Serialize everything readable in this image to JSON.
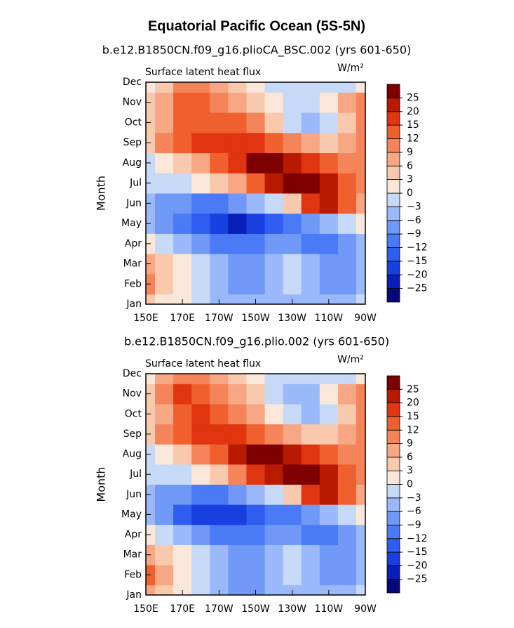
{
  "chart_data": [
    {
      "type": "contour",
      "title": "Equatorial Pacific Ocean (5S-5N)",
      "subtitle": "b.e12.B1850CN.f09_g16.plioCA_BSC.002 (yrs 601-650)",
      "left_label": "Surface latent heat flux",
      "units": "W/m²",
      "ylabel": "Month",
      "categories": [
        "Jan",
        "Feb",
        "Mar",
        "Apr",
        "May",
        "Jun",
        "Jul",
        "Aug",
        "Sep",
        "Oct",
        "Nov",
        "Dec"
      ],
      "x": [
        150,
        160,
        170,
        180,
        190,
        200,
        210,
        220,
        230,
        240,
        250,
        260,
        270
      ],
      "xlim": [
        150,
        270
      ],
      "xticks": [
        {
          "value": 150,
          "label": "150E"
        },
        {
          "value": 170,
          "label": "170E"
        },
        {
          "value": 190,
          "label": "170W"
        },
        {
          "value": 210,
          "label": "150W"
        },
        {
          "value": 230,
          "label": "130W"
        },
        {
          "value": 250,
          "label": "110W"
        },
        {
          "value": 270,
          "label": "90W"
        }
      ],
      "values": [
        [
          4,
          2,
          0,
          -3,
          -6,
          -6,
          -6,
          -6,
          -6,
          -6,
          -6,
          -4,
          -3
        ],
        [
          9,
          3,
          0,
          -3,
          -6,
          -9,
          -9,
          -6,
          -3,
          -6,
          -9,
          -9,
          -6
        ],
        [
          6,
          3,
          0,
          -3,
          -6,
          -9,
          -9,
          -6,
          -3,
          -6,
          -9,
          -9,
          -6
        ],
        [
          0,
          -3,
          -6,
          -9,
          -12,
          -12,
          -12,
          -9,
          -9,
          -12,
          -12,
          -9,
          -6
        ],
        [
          -6,
          -9,
          -12,
          -15,
          -20,
          -22,
          -20,
          -15,
          -12,
          -9,
          -6,
          -3,
          0
        ],
        [
          -6,
          -9,
          -9,
          -12,
          -12,
          -9,
          -6,
          -3,
          3,
          15,
          20,
          12,
          6
        ],
        [
          -3,
          -3,
          -3,
          0,
          3,
          6,
          12,
          20,
          27,
          27,
          20,
          12,
          9
        ],
        [
          -3,
          0,
          3,
          6,
          12,
          18,
          27,
          27,
          20,
          15,
          12,
          9,
          9
        ],
        [
          3,
          9,
          12,
          15,
          18,
          18,
          15,
          12,
          9,
          6,
          3,
          6,
          9
        ],
        [
          3,
          6,
          12,
          13,
          13,
          12,
          9,
          3,
          -3,
          -6,
          -3,
          3,
          9
        ],
        [
          3,
          6,
          13,
          13,
          9,
          6,
          3,
          0,
          -3,
          -3,
          0,
          6,
          9
        ],
        [
          0,
          3,
          9,
          9,
          6,
          3,
          0,
          -3,
          -3,
          -3,
          -3,
          -3,
          0
        ]
      ],
      "levels": [
        {
          "value": -25,
          "label": "−25"
        },
        {
          "value": -20,
          "label": "−20"
        },
        {
          "value": -15,
          "label": "−15"
        },
        {
          "value": -12,
          "label": "−12"
        },
        {
          "value": -9,
          "label": "−9"
        },
        {
          "value": -6,
          "label": "−6"
        },
        {
          "value": -3,
          "label": "−3"
        },
        0,
        3,
        6,
        9,
        12,
        15,
        20,
        25
      ],
      "colors": [
        "#08087a",
        "#0a1fb8",
        "#1a3fe0",
        "#2f5df0",
        "#4a7af5",
        "#6f98f7",
        "#9ab8fa",
        "#c6daf8",
        "#fbe7d9",
        "#f9c9ad",
        "#f8a784",
        "#f5845a",
        "#f0602e",
        "#e03510",
        "#b81a00",
        "#7f0000"
      ]
    },
    {
      "type": "contour",
      "subtitle": "b.e12.B1850CN.f09_g16.plio.002 (yrs 601-650)",
      "left_label": "Surface latent heat flux",
      "units": "W/m²",
      "ylabel": "Month",
      "categories": [
        "Jan",
        "Feb",
        "Mar",
        "Apr",
        "May",
        "Jun",
        "Jul",
        "Aug",
        "Sep",
        "Oct",
        "Nov",
        "Dec"
      ],
      "x": [
        150,
        160,
        170,
        180,
        190,
        200,
        210,
        220,
        230,
        240,
        250,
        260,
        270
      ],
      "xlim": [
        150,
        270
      ],
      "xticks": [
        {
          "value": 150,
          "label": "150E"
        },
        {
          "value": 170,
          "label": "170E"
        },
        {
          "value": 190,
          "label": "170W"
        },
        {
          "value": 210,
          "label": "150W"
        },
        {
          "value": 230,
          "label": "130W"
        },
        {
          "value": 250,
          "label": "110W"
        },
        {
          "value": 270,
          "label": "90W"
        }
      ],
      "values": [
        [
          6,
          3,
          0,
          -3,
          -6,
          -9,
          -9,
          -6,
          -6,
          -6,
          -6,
          -6,
          -3
        ],
        [
          12,
          6,
          0,
          -3,
          -6,
          -9,
          -9,
          -6,
          -3,
          -6,
          -9,
          -9,
          -6
        ],
        [
          6,
          3,
          0,
          -3,
          -6,
          -9,
          -9,
          -6,
          -3,
          -6,
          -9,
          -9,
          -6
        ],
        [
          0,
          -3,
          -6,
          -9,
          -12,
          -12,
          -12,
          -9,
          -9,
          -12,
          -12,
          -9,
          -6
        ],
        [
          -6,
          -9,
          -15,
          -18,
          -20,
          -18,
          -15,
          -12,
          -12,
          -9,
          -6,
          -3,
          0
        ],
        [
          -6,
          -9,
          -9,
          -12,
          -12,
          -9,
          -6,
          -3,
          3,
          15,
          20,
          12,
          6
        ],
        [
          -3,
          -3,
          -3,
          0,
          3,
          9,
          15,
          21,
          27,
          27,
          20,
          12,
          9
        ],
        [
          -3,
          0,
          3,
          9,
          12,
          20,
          27,
          27,
          20,
          15,
          12,
          9,
          9
        ],
        [
          3,
          9,
          12,
          15,
          16,
          15,
          12,
          9,
          6,
          3,
          3,
          6,
          9
        ],
        [
          3,
          6,
          13,
          15,
          12,
          9,
          6,
          0,
          -3,
          -6,
          -3,
          3,
          9
        ],
        [
          3,
          9,
          15,
          13,
          9,
          6,
          3,
          -3,
          -6,
          -6,
          0,
          6,
          9
        ],
        [
          0,
          6,
          9,
          9,
          6,
          3,
          0,
          -3,
          -3,
          -3,
          -3,
          -3,
          0
        ]
      ],
      "levels": [
        {
          "value": -25,
          "label": "−25"
        },
        {
          "value": -20,
          "label": "−20"
        },
        {
          "value": -15,
          "label": "−15"
        },
        {
          "value": -12,
          "label": "−12"
        },
        {
          "value": -9,
          "label": "−9"
        },
        {
          "value": -6,
          "label": "−6"
        },
        {
          "value": -3,
          "label": "−3"
        },
        0,
        3,
        6,
        9,
        12,
        15,
        20,
        25
      ],
      "colors": [
        "#08087a",
        "#0a1fb8",
        "#1a3fe0",
        "#2f5df0",
        "#4a7af5",
        "#6f98f7",
        "#9ab8fa",
        "#c6daf8",
        "#fbe7d9",
        "#f9c9ad",
        "#f8a784",
        "#f5845a",
        "#f0602e",
        "#e03510",
        "#b81a00",
        "#7f0000"
      ]
    }
  ]
}
